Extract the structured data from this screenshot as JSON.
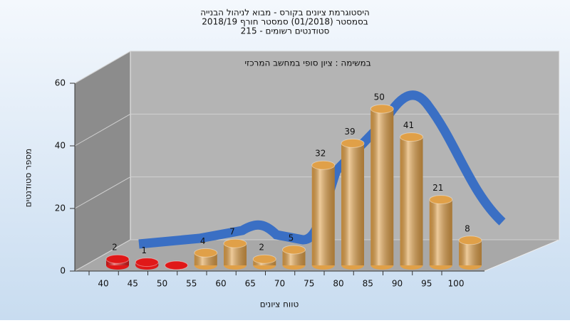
{
  "chart_data": {
    "type": "bar",
    "title": [
      "היסטוגרמת ציונים בקורס - מבוא לניהול הבנייה",
      "בסמסטר  (01/2018)  סמסטר חורף 2018/19",
      "סטודנטים רשומים - 215"
    ],
    "annotation": "במשימה : ציון סופי במחשב המרכזי",
    "x_label": "טווח ציונים",
    "y_label": "מספר סטודנטים",
    "categories": [
      "40",
      "45",
      "50",
      "55",
      "60",
      "65",
      "70",
      "75",
      "80",
      "85",
      "90",
      "95",
      "100"
    ],
    "values": [
      2,
      1,
      0,
      4,
      7,
      2,
      5,
      32,
      39,
      50,
      41,
      21,
      8
    ],
    "colors": [
      "#e01818",
      "#e01818",
      "#e01818",
      "#e0a048",
      "#e0a048",
      "#e0a048",
      "#e0a048",
      "#e0a048",
      "#e0a048",
      "#e0a048",
      "#e0a048",
      "#e0a048",
      "#e0a048"
    ],
    "ylim": [
      0,
      60
    ],
    "yticks": [
      0,
      20,
      40,
      60
    ],
    "grid": true
  }
}
